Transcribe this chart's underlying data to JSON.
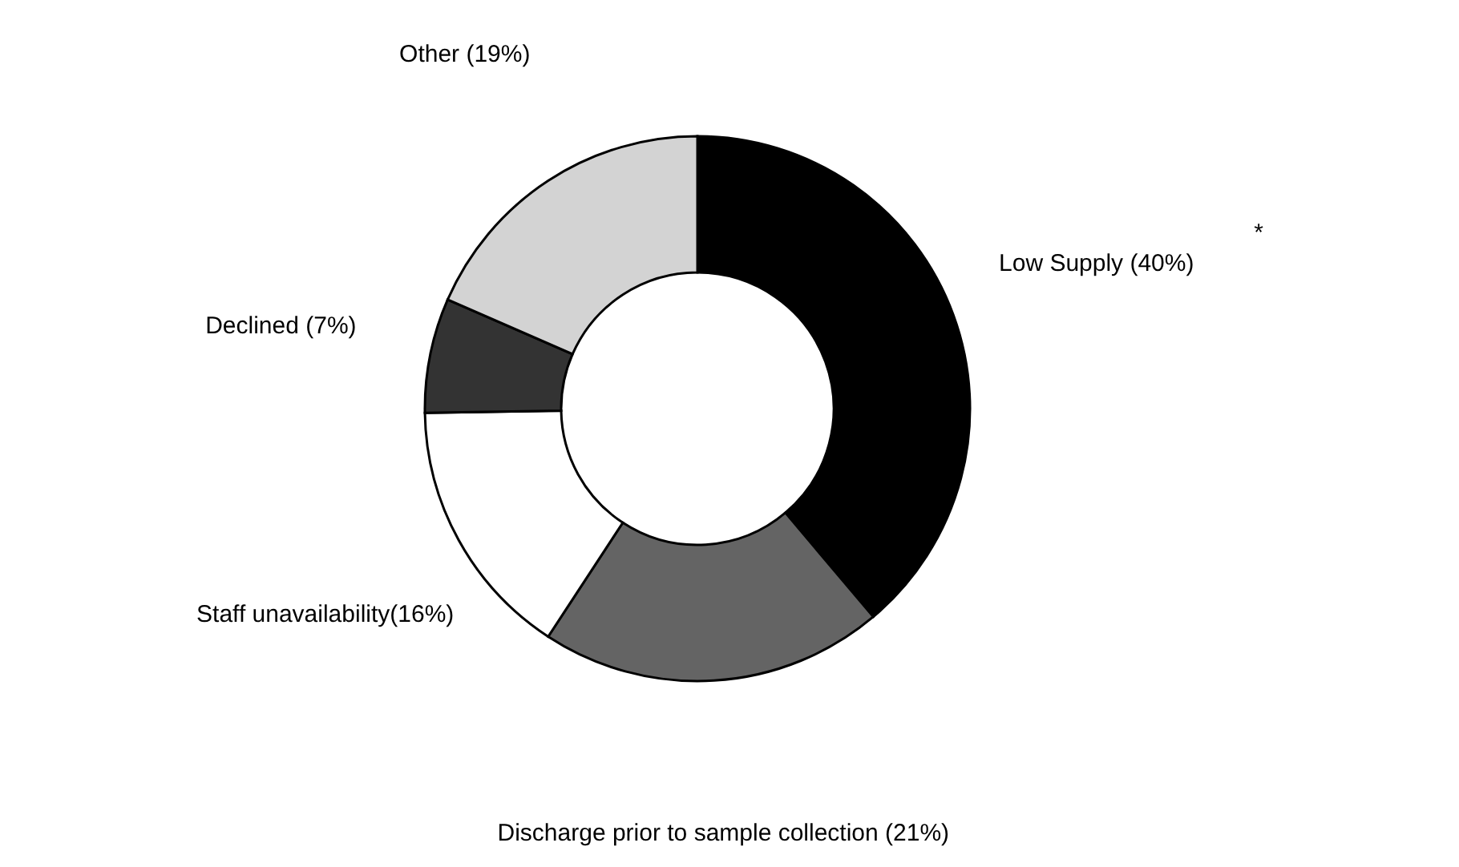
{
  "chart_data": {
    "type": "donut",
    "categories": [
      "Low Supply (40%)",
      "Discharge prior to sample collection (21%)",
      "Staff unavailability(16%)",
      "Declined (7%)",
      "Other (19%)"
    ],
    "values": [
      40,
      21,
      16,
      7,
      19
    ],
    "colors": [
      "#000000",
      "#646464",
      "#ffffff",
      "#333333",
      "#d3d3d3"
    ],
    "annotations": [
      "*"
    ],
    "legend": false
  }
}
